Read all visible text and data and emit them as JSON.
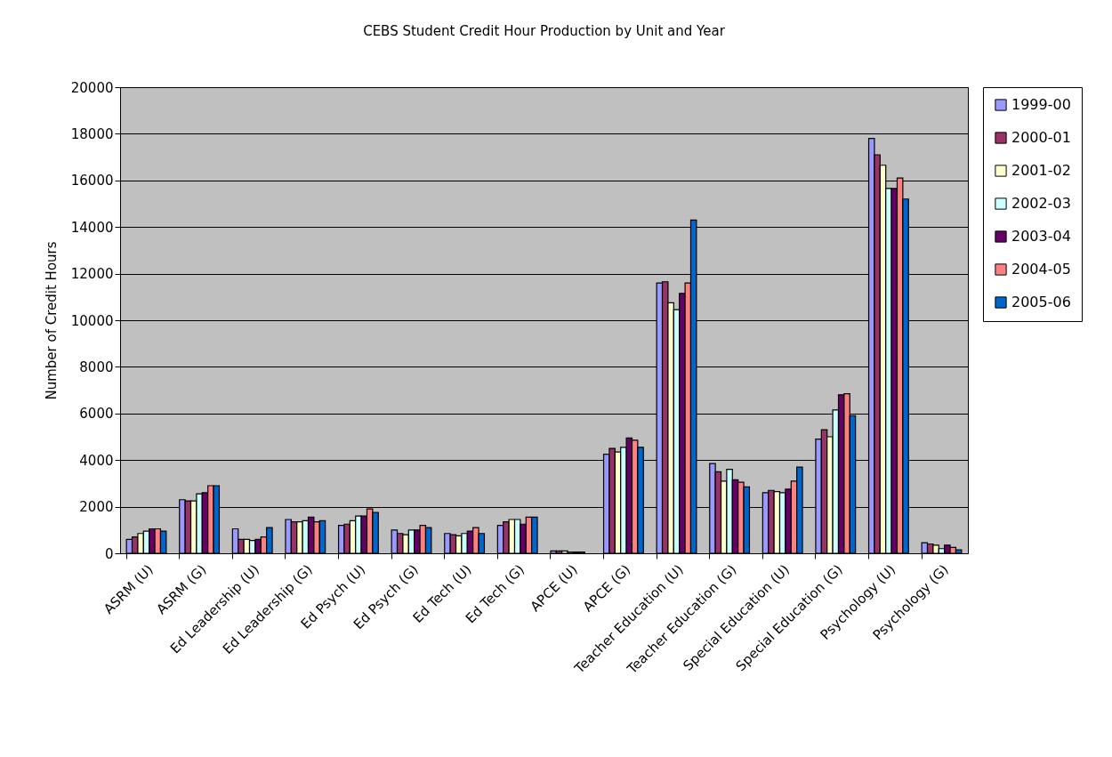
{
  "chart_data": {
    "type": "bar",
    "title": "CEBS Student Credit Hour Production by Unit and Year",
    "ylabel": "Number of Credit Hours",
    "categories": [
      "ASRM (U)",
      "ASRM (G)",
      "Ed Leadership (U)",
      "Ed Leadership (G)",
      "Ed Psych (U)",
      "Ed Psych (G)",
      "Ed Tech (U)",
      "Ed Tech (G)",
      "APCE (U)",
      "APCE (G)",
      "Teacher Education (U)",
      "Teacher Education (G)",
      "Special Education (U)",
      "Special Education (G)",
      "Psychology (U)",
      "Psychology (G)"
    ],
    "series": [
      {
        "name": "1999-00",
        "color": "#9999ff",
        "values": [
          600,
          2300,
          1050,
          1450,
          1200,
          1000,
          850,
          1200,
          100,
          4250,
          11600,
          3850,
          2600,
          4900,
          17800,
          450
        ]
      },
      {
        "name": "2000-01",
        "color": "#993366",
        "values": [
          700,
          2250,
          600,
          1350,
          1250,
          850,
          800,
          1350,
          100,
          4500,
          11650,
          3500,
          2700,
          5300,
          17100,
          400
        ]
      },
      {
        "name": "2001-02",
        "color": "#ffffcc",
        "values": [
          850,
          2250,
          600,
          1350,
          1400,
          800,
          750,
          1450,
          100,
          4350,
          10750,
          3100,
          2650,
          5000,
          16650,
          350
        ]
      },
      {
        "name": "2002-03",
        "color": "#ccffff",
        "values": [
          950,
          2550,
          550,
          1400,
          1600,
          1000,
          850,
          1450,
          50,
          4550,
          10450,
          3600,
          2600,
          6150,
          15650,
          200
        ]
      },
      {
        "name": "2003-04",
        "color": "#660066",
        "values": [
          1050,
          2600,
          600,
          1550,
          1600,
          1000,
          950,
          1250,
          50,
          4950,
          11150,
          3150,
          2750,
          6800,
          15650,
          350
        ]
      },
      {
        "name": "2004-05",
        "color": "#ff8080",
        "values": [
          1050,
          2900,
          700,
          1350,
          1900,
          1200,
          1100,
          1550,
          50,
          4850,
          11600,
          3050,
          3100,
          6850,
          16100,
          250
        ]
      },
      {
        "name": "2005-06",
        "color": "#0066cc",
        "values": [
          950,
          2900,
          1100,
          1400,
          1750,
          1100,
          850,
          1550,
          null,
          4550,
          14300,
          2850,
          3700,
          5900,
          15200,
          150
        ]
      }
    ],
    "ylim": [
      0,
      20000
    ],
    "yticks": [
      0,
      2000,
      4000,
      6000,
      8000,
      10000,
      12000,
      14000,
      16000,
      18000,
      20000
    ],
    "grid": "y",
    "legend": "right"
  }
}
